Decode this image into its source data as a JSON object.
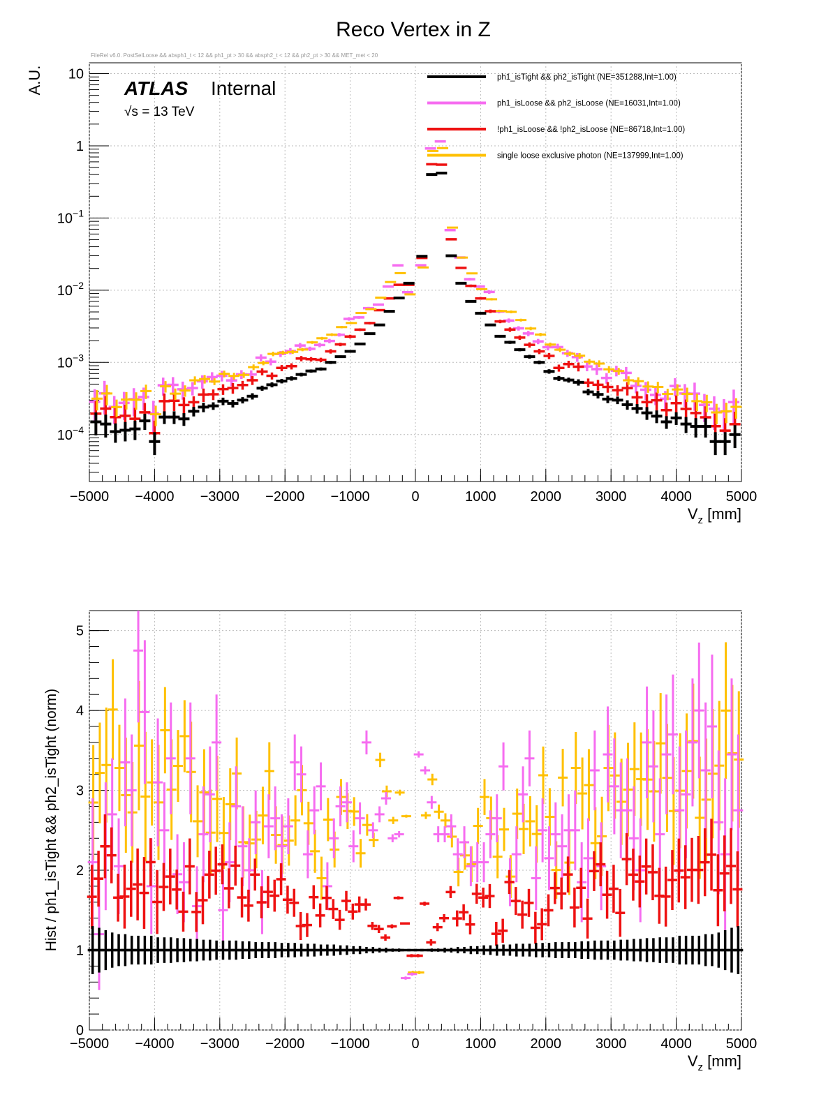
{
  "title": "Reco Vertex in Z",
  "subtitle": "FileRel v6.0. PostSelLoose && absph1_t < 12 && ph1_pt > 30 && absph2_t < 12 && ph2_pt > 30 && MET_met < 20",
  "atlas": {
    "brand": "ATLAS",
    "status": "Internal",
    "energy_prefix": "√s = 13 TeV"
  },
  "colors": {
    "tight": "#000000",
    "loose": "#f66cf0",
    "notloose": "#ee1111",
    "single": "#ffc000",
    "grid": "#bbbbbb"
  },
  "chart_data": [
    {
      "type": "scatter",
      "name": "top",
      "title": "Reco Vertex in Z",
      "ylabel": "A.U.",
      "xlabel_main": "V",
      "xlabel_sub": "z",
      "xlabel_unit": " [mm]",
      "xlim": [
        -5000,
        5000
      ],
      "ylim_log10": [
        -4.65,
        1.15
      ],
      "yscale": "log",
      "xticks": [
        -5000,
        -4000,
        -3000,
        -2000,
        -1000,
        0,
        1000,
        2000,
        3000,
        4000,
        5000
      ],
      "xtick_labels": [
        "−5000",
        "−4000",
        "−3000",
        "−2000",
        "−1000",
        "0",
        "1000",
        "2000",
        "3000",
        "4000",
        "5000"
      ],
      "ytick_labels": [
        {
          "base": "10",
          "exp": "",
          "log10": 1
        },
        {
          "base": "1",
          "exp": "",
          "log10": 0
        },
        {
          "base": "10",
          "exp": "−1",
          "log10": -1
        },
        {
          "base": "10",
          "exp": "−2",
          "log10": -2
        },
        {
          "base": "10",
          "exp": "−3",
          "log10": -3
        },
        {
          "base": "10",
          "exp": "−4",
          "log10": -4
        }
      ],
      "legend": [
        {
          "key": "tight",
          "label": "ph1_isTight && ph2_isTight (NE=351288,Int=1.00)"
        },
        {
          "key": "loose",
          "label": "ph1_isLoose && ph2_isLoose (NE=16031,Int=1.00)"
        },
        {
          "key": "notloose",
          "label": "!ph1_isLoose && !ph2_isLoose (NE=86718,Int=1.00)"
        },
        {
          "key": "single",
          "label": "single loose exclusive photon (NE=137999,Int=1.00)"
        }
      ],
      "legend_position": "top-right",
      "series": [
        {
          "key": "tight",
          "x": [
            -4900,
            -4750,
            -4600,
            -4450,
            -4300,
            -4150,
            -4000,
            -3850,
            -3700,
            -3550,
            -3400,
            -3250,
            -3100,
            -2950,
            -2800,
            -2650,
            -2500,
            -2350,
            -2200,
            -2050,
            -1900,
            -1750,
            -1600,
            -1450,
            -1300,
            -1150,
            -1000,
            -850,
            -700,
            -550,
            -400,
            -250,
            -100,
            100,
            250,
            400,
            550,
            700,
            850,
            1000,
            1150,
            1300,
            1450,
            1600,
            1750,
            1900,
            2050,
            2200,
            2350,
            2500,
            2650,
            2800,
            2950,
            3100,
            3250,
            3400,
            3550,
            3700,
            3850,
            4000,
            4150,
            4300,
            4450,
            4600,
            4750,
            4900
          ],
          "y": [
            0.00015,
            0.00014,
            0.00011,
            0.000115,
            0.00012,
            0.000155,
            8e-05,
            0.000175,
            0.000175,
            0.000165,
            0.00021,
            0.00024,
            0.00025,
            0.00029,
            0.00027,
            0.0003,
            0.00034,
            0.00044,
            0.00049,
            0.00055,
            0.0006,
            0.00068,
            0.00076,
            0.00081,
            0.001,
            0.0012,
            0.00142,
            0.0018,
            0.0025,
            0.0033,
            0.0051,
            0.0078,
            0.0125,
            0.0295,
            0.4,
            0.42,
            0.03,
            0.0125,
            0.007,
            0.0048,
            0.0033,
            0.0023,
            0.0019,
            0.0015,
            0.0012,
            0.001,
            0.00075,
            0.0006,
            0.00057,
            0.00053,
            0.00039,
            0.00036,
            0.00031,
            0.0003,
            0.00026,
            0.00023,
            0.0002,
            0.00018,
            0.00015,
            0.00017,
            0.00014,
            0.00013,
            0.00013,
            8e-05,
            8e-05,
            0.0001
          ],
          "err": [
            0.35,
            0.35,
            0.3,
            0.3,
            0.3,
            0.25,
            0.35,
            0.2,
            0.2,
            0.2,
            0.15,
            0.15,
            0.12,
            0.12,
            0.12,
            0.1,
            0.1,
            0.08,
            0.08,
            0.07,
            0.07,
            0.06,
            0.05,
            0.05,
            0.05,
            0.04,
            0.04,
            0.03,
            0.03,
            0.02,
            0.02,
            0.01,
            0.01,
            0.01,
            0.01,
            0.01,
            0.02,
            0.02,
            0.03,
            0.03,
            0.04,
            0.04,
            0.05,
            0.05,
            0.06,
            0.06,
            0.07,
            0.08,
            0.08,
            0.1,
            0.1,
            0.12,
            0.12,
            0.12,
            0.15,
            0.15,
            0.2,
            0.2,
            0.2,
            0.2,
            0.25,
            0.3,
            0.3,
            0.35,
            0.35,
            0.35
          ]
        },
        {
          "key": "loose",
          "x": [],
          "y": [],
          "err": []
        },
        {
          "key": "notloose",
          "x": [],
          "y": [],
          "err": []
        },
        {
          "key": "single",
          "x": [],
          "y": [],
          "err": []
        }
      ]
    },
    {
      "type": "scatter",
      "name": "ratio",
      "ylabel": "Hist / ph1_isTight && ph2_isTight (norm)",
      "xlabel_main": "V",
      "xlabel_sub": "z",
      "xlabel_unit": " [mm]",
      "xlim": [
        -5000,
        5000
      ],
      "ylim": [
        0,
        5.25
      ],
      "xticks": [
        -5000,
        -4000,
        -3000,
        -2000,
        -1000,
        0,
        1000,
        2000,
        3000,
        4000,
        5000
      ],
      "xtick_labels": [
        "−5000",
        "−4000",
        "−3000",
        "−2000",
        "−1000",
        "0",
        "1000",
        "2000",
        "3000",
        "4000",
        "5000"
      ],
      "yticks": [
        0,
        1,
        2,
        3,
        4,
        5
      ],
      "ytick_labels": [
        "0",
        "1",
        "2",
        "3",
        "4",
        "5"
      ],
      "series": [
        {
          "key": "tight",
          "x": [
            -4950,
            -4850,
            -4750,
            -4650,
            -4550,
            -4450,
            -4350,
            -4250,
            -4150,
            -4050,
            -3950,
            -3850,
            -3750,
            -3650,
            -3550,
            -3450,
            -3350,
            -3250,
            -3150,
            -3050,
            -2950,
            -2850,
            -2750,
            -2650,
            -2550,
            -2450,
            -2350,
            -2250,
            -2150,
            -2050,
            -1950,
            -1850,
            -1750,
            -1650,
            -1550,
            -1450,
            -1350,
            -1250,
            -1150,
            -1050,
            -950,
            -850,
            -750,
            -650,
            -550,
            -450,
            -350,
            -250,
            -150,
            -50,
            50,
            150,
            250,
            350,
            450,
            550,
            650,
            750,
            850,
            950,
            1050,
            1150,
            1250,
            1350,
            1450,
            1550,
            1650,
            1750,
            1850,
            1950,
            2050,
            2150,
            2250,
            2350,
            2450,
            2550,
            2650,
            2750,
            2850,
            2950,
            3050,
            3150,
            3250,
            3350,
            3450,
            3550,
            3650,
            3750,
            3850,
            3950,
            4050,
            4150,
            4250,
            4350,
            4450,
            4550,
            4650,
            4750,
            4850,
            4950
          ],
          "y": [
            1,
            1,
            1,
            1,
            1,
            1,
            1,
            1,
            1,
            1,
            1,
            1,
            1,
            1,
            1,
            1,
            1,
            1,
            1,
            1,
            1,
            1,
            1,
            1,
            1,
            1,
            1,
            1,
            1,
            1,
            1,
            1,
            1,
            1,
            1,
            1,
            1,
            1,
            1,
            1,
            1,
            1,
            1,
            1,
            1,
            1,
            1,
            1,
            1,
            1,
            1,
            1,
            1,
            1,
            1,
            1,
            1,
            1,
            1,
            1,
            1,
            1,
            1,
            1,
            1,
            1,
            1,
            1,
            1,
            1,
            1,
            1,
            1,
            1,
            1,
            1,
            1,
            1,
            1,
            1,
            1,
            1,
            1,
            1,
            1,
            1,
            1,
            1,
            1,
            1,
            1,
            1,
            1,
            1,
            1,
            1,
            1,
            1,
            1,
            1
          ],
          "err": [
            0.3,
            0.28,
            0.25,
            0.22,
            0.2,
            0.2,
            0.18,
            0.18,
            0.18,
            0.18,
            0.16,
            0.16,
            0.16,
            0.15,
            0.15,
            0.14,
            0.14,
            0.13,
            0.13,
            0.12,
            0.12,
            0.12,
            0.12,
            0.11,
            0.11,
            0.1,
            0.1,
            0.1,
            0.1,
            0.09,
            0.09,
            0.09,
            0.08,
            0.08,
            0.08,
            0.07,
            0.07,
            0.07,
            0.06,
            0.06,
            0.05,
            0.05,
            0.04,
            0.04,
            0.03,
            0.03,
            0.02,
            0.02,
            0.01,
            0.01,
            0.01,
            0.01,
            0.02,
            0.02,
            0.03,
            0.03,
            0.04,
            0.04,
            0.05,
            0.05,
            0.06,
            0.06,
            0.07,
            0.07,
            0.07,
            0.08,
            0.08,
            0.08,
            0.09,
            0.09,
            0.09,
            0.1,
            0.1,
            0.1,
            0.1,
            0.11,
            0.11,
            0.12,
            0.12,
            0.12,
            0.12,
            0.13,
            0.13,
            0.14,
            0.14,
            0.15,
            0.15,
            0.16,
            0.16,
            0.16,
            0.18,
            0.18,
            0.18,
            0.18,
            0.2,
            0.2,
            0.22,
            0.25,
            0.28,
            0.3
          ]
        },
        {
          "key": "loose",
          "x": [
            -4950,
            -4850,
            -4750,
            -4650,
            -4550,
            -4450,
            -4350,
            -4250,
            -4150,
            -4050,
            -3950,
            -3850,
            -3750,
            -3650,
            -3550,
            -3450,
            -3350,
            -3250,
            -3150,
            -3050,
            -2950,
            -2850,
            -2750,
            -2650,
            -2550,
            -2450,
            -2350,
            -2250,
            -2150,
            -2050,
            -1950,
            -1850,
            -1750,
            -1650,
            -1550,
            -1450,
            -1350,
            -1250,
            -1150,
            -1050,
            -950,
            -850,
            -750,
            -650,
            -550,
            -450,
            -350,
            -250,
            -150,
            -50,
            50,
            150,
            250,
            350,
            450,
            550,
            650,
            750,
            850,
            950,
            1050,
            1150,
            1250,
            1350,
            1450,
            1550,
            1650,
            1750,
            1850,
            1950,
            2050,
            2150,
            2250,
            2350,
            2450,
            2550,
            2650,
            2750,
            2850,
            2950,
            3050,
            3150,
            3250,
            3350,
            3450,
            3550,
            3650,
            3750,
            3850,
            3950,
            4050,
            4150,
            4250,
            4350,
            4450,
            4550,
            4650,
            4750,
            4850,
            4950
          ],
          "y": [
            2.1,
            1.2,
            2.3,
            2.7,
            2.05,
            3.35,
            3.0,
            4.75,
            3.98,
            1.8,
            3.1,
            2.5,
            3.4,
            1.95,
            1.85,
            3.4,
            1.55,
            2.45,
            2.95,
            3.6,
            1.5,
            2.1,
            2.8,
            2.3,
            2.0,
            2.6,
            1.6,
            2.55,
            2.65,
            2.3,
            2.55,
            3.35,
            3.2,
            2.2,
            2.75,
            3.05,
            1.8,
            2.4,
            2.8,
            2.85,
            2.3,
            2.65,
            3.6,
            2.5,
            2.7,
            2.9,
            2.4,
            2.45,
            0.65,
            0.7,
            3.45,
            3.25,
            2.85,
            2.45,
            2.45,
            2.55,
            2.2,
            2.35,
            2.05,
            2.1,
            2.1,
            2.45,
            2.65,
            3.3,
            1.85,
            2.2,
            2.95,
            3.4,
            1.9,
            2.5,
            2.15,
            2.45,
            2.3,
            2.5,
            2.5,
            1.85,
            2.15,
            3.25,
            2.05,
            3.45,
            3.05,
            2.75,
            2.75,
            2.4,
            2.0,
            3.6,
            3.3,
            2.45,
            3.45,
            3.7,
            2.75,
            2.95,
            3.6,
            4.0,
            3.25,
            3.8,
            2.6,
            2.2,
            3.45,
            2.75
          ],
          "err": [
            0.8,
            0.7,
            0.8,
            0.7,
            0.6,
            0.8,
            0.7,
            0.9,
            0.9,
            0.6,
            0.8,
            0.6,
            0.7,
            0.5,
            0.5,
            0.7,
            0.5,
            0.6,
            0.6,
            0.6,
            0.5,
            0.5,
            0.5,
            0.5,
            0.4,
            0.4,
            0.4,
            0.4,
            0.4,
            0.4,
            0.35,
            0.35,
            0.35,
            0.3,
            0.3,
            0.3,
            0.3,
            0.25,
            0.25,
            0.25,
            0.2,
            0.2,
            0.15,
            0.1,
            0.1,
            0.08,
            0.05,
            0.04,
            0.02,
            0.02,
            0.04,
            0.05,
            0.08,
            0.1,
            0.1,
            0.15,
            0.2,
            0.2,
            0.25,
            0.25,
            0.25,
            0.3,
            0.3,
            0.3,
            0.3,
            0.35,
            0.35,
            0.35,
            0.4,
            0.4,
            0.4,
            0.4,
            0.4,
            0.45,
            0.5,
            0.5,
            0.5,
            0.5,
            0.55,
            0.6,
            0.6,
            0.6,
            0.65,
            0.65,
            0.65,
            0.7,
            0.7,
            0.7,
            0.75,
            0.75,
            0.8,
            0.8,
            0.8,
            0.85,
            0.85,
            0.9,
            0.9,
            0.95,
            0.95,
            0.95
          ]
        },
        {
          "key": "notloose",
          "x": [],
          "y": [],
          "err": []
        },
        {
          "key": "single",
          "x": [],
          "y": [],
          "err": []
        }
      ]
    }
  ]
}
